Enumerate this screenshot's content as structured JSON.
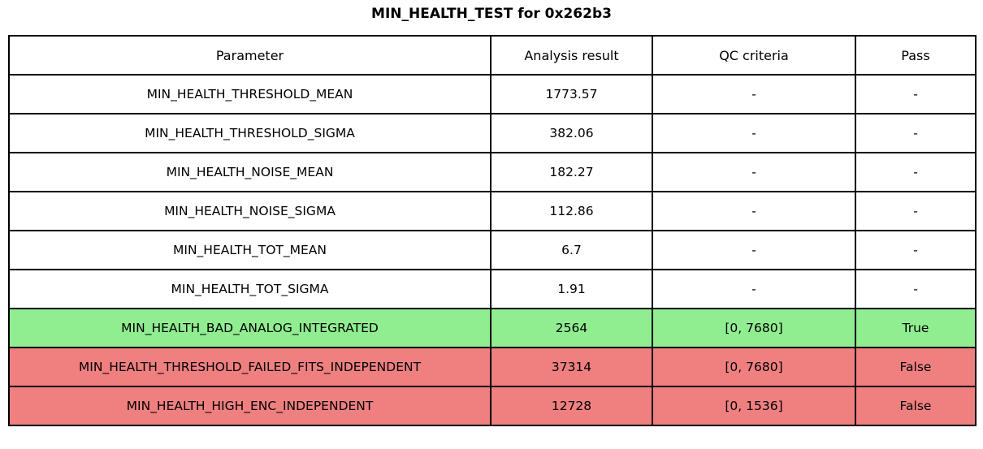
{
  "title": "MIN_HEALTH_TEST for 0x262b3",
  "colors": {
    "pass_row": "#90EE90",
    "fail_row": "#F08080",
    "border": "#000000"
  },
  "chart_data": {
    "type": "table",
    "title": "MIN_HEALTH_TEST for 0x262b3",
    "columns": [
      "Parameter",
      "Analysis result",
      "QC criteria",
      "Pass"
    ],
    "rows": [
      {
        "parameter": "MIN_HEALTH_THRESHOLD_MEAN",
        "analysis_result": "1773.57",
        "qc_criteria": "-",
        "pass": "-",
        "status": "none"
      },
      {
        "parameter": "MIN_HEALTH_THRESHOLD_SIGMA",
        "analysis_result": "382.06",
        "qc_criteria": "-",
        "pass": "-",
        "status": "none"
      },
      {
        "parameter": "MIN_HEALTH_NOISE_MEAN",
        "analysis_result": "182.27",
        "qc_criteria": "-",
        "pass": "-",
        "status": "none"
      },
      {
        "parameter": "MIN_HEALTH_NOISE_SIGMA",
        "analysis_result": "112.86",
        "qc_criteria": "-",
        "pass": "-",
        "status": "none"
      },
      {
        "parameter": "MIN_HEALTH_TOT_MEAN",
        "analysis_result": "6.7",
        "qc_criteria": "-",
        "pass": "-",
        "status": "none"
      },
      {
        "parameter": "MIN_HEALTH_TOT_SIGMA",
        "analysis_result": "1.91",
        "qc_criteria": "-",
        "pass": "-",
        "status": "none"
      },
      {
        "parameter": "MIN_HEALTH_BAD_ANALOG_INTEGRATED",
        "analysis_result": "2564",
        "qc_criteria": "[0, 7680]",
        "pass": "True",
        "status": "pass"
      },
      {
        "parameter": "MIN_HEALTH_THRESHOLD_FAILED_FITS_INDEPENDENT",
        "analysis_result": "37314",
        "qc_criteria": "[0, 7680]",
        "pass": "False",
        "status": "fail"
      },
      {
        "parameter": "MIN_HEALTH_HIGH_ENC_INDEPENDENT",
        "analysis_result": "12728",
        "qc_criteria": "[0, 1536]",
        "pass": "False",
        "status": "fail"
      }
    ]
  }
}
